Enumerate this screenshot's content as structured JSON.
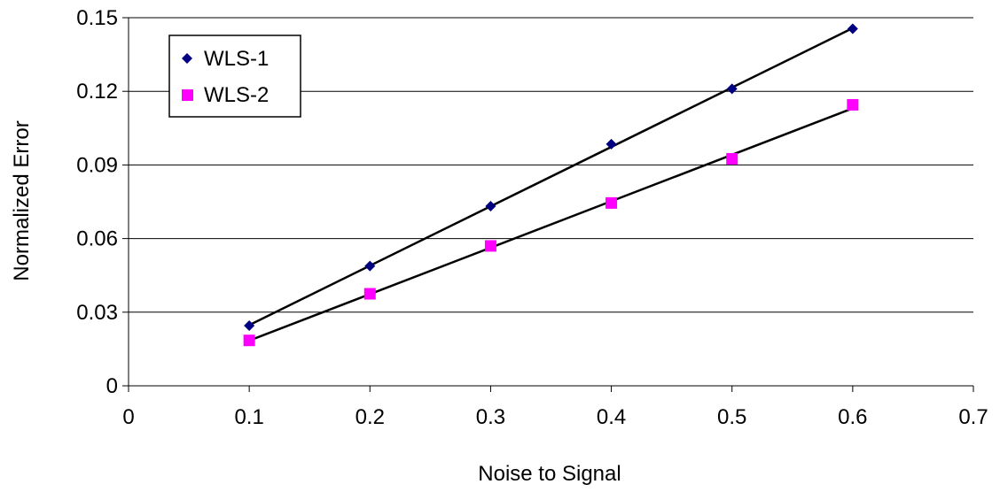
{
  "chart_data": {
    "type": "scatter",
    "title": "",
    "xlabel": "Noise to Signal",
    "ylabel": "Normalized Error",
    "xlim": [
      0,
      0.7
    ],
    "ylim": [
      0,
      0.15
    ],
    "x_ticks": [
      "0",
      "0.1",
      "0.2",
      "0.3",
      "0.4",
      "0.5",
      "0.6",
      "0.7"
    ],
    "y_ticks": [
      "0",
      "0.03",
      "0.06",
      "0.09",
      "0.12",
      "0.15"
    ],
    "grid": "horizontal",
    "legend_position": "top-left",
    "trendlines": "linear",
    "series": [
      {
        "name": "WLS-1",
        "marker": "diamond",
        "color": "#000080",
        "x": [
          0.1,
          0.2,
          0.3,
          0.4,
          0.5,
          0.6
        ],
        "y": [
          0.0245,
          0.0488,
          0.0732,
          0.0985,
          0.121,
          0.1455
        ]
      },
      {
        "name": "WLS-2",
        "marker": "square",
        "color": "#FF00FF",
        "x": [
          0.1,
          0.2,
          0.3,
          0.4,
          0.5,
          0.6
        ],
        "y": [
          0.0185,
          0.0375,
          0.057,
          0.0745,
          0.0925,
          0.1145
        ]
      }
    ]
  }
}
